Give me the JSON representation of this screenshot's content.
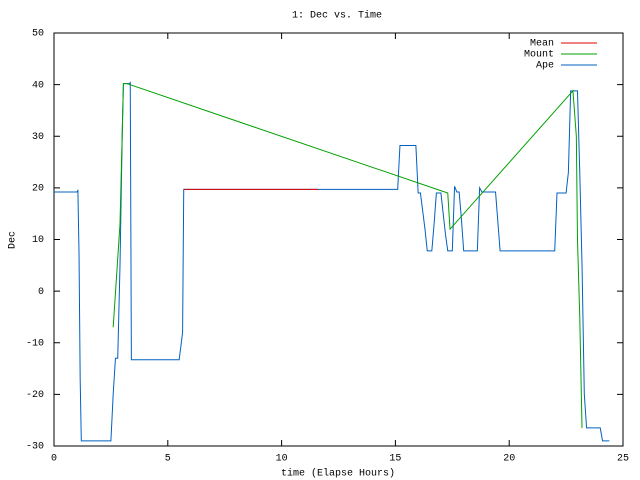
{
  "chart_data": {
    "type": "line",
    "title": "1: Dec vs. Time",
    "x_label": "time (Elapse Hours)",
    "y_label": "Dec",
    "xlim": [
      0,
      25
    ],
    "xticks": [
      0,
      5,
      10,
      15,
      20,
      25
    ],
    "ylim": [
      -30,
      50
    ],
    "yticks": [
      -30,
      -20,
      -10,
      0,
      10,
      20,
      30,
      40,
      50
    ],
    "grid": false,
    "legend": "top-right",
    "series": [
      {
        "name": "Mean",
        "color": "#e00000",
        "x": [
          5.7,
          11.6,
          15.3,
          15.8
        ],
        "values": [
          19.7,
          19.7,
          null,
          28.2
        ]
      },
      {
        "name": "Mount",
        "color": "#00a000",
        "x": [
          2.6,
          2.9,
          3.0,
          3.05,
          3.2,
          17.3,
          17.4,
          22.8,
          22.95,
          23.0,
          23.1,
          23.2
        ],
        "values": [
          -7,
          13,
          31,
          40.2,
          40.2,
          19,
          12,
          38.8,
          30,
          10,
          -5,
          -26.5
        ]
      },
      {
        "name": "Ape",
        "color": "#0060c0",
        "x": [
          0,
          1.0,
          1.05,
          1.1,
          1.15,
          1.2,
          2.5,
          2.6,
          2.7,
          2.8,
          2.9,
          3.0,
          3.05,
          3.3,
          3.35,
          3.4,
          5.5,
          5.65,
          5.7,
          15.1,
          15.2,
          15.9,
          16.0,
          16.1,
          16.3,
          16.4,
          16.6,
          16.7,
          16.8,
          17.0,
          17.2,
          17.3,
          17.5,
          17.6,
          17.7,
          17.8,
          17.9,
          18.0,
          18.6,
          18.7,
          18.8,
          19.4,
          19.6,
          22.0,
          22.1,
          22.5,
          22.6,
          22.7,
          23.0,
          23.1,
          23.2,
          23.3,
          23.4,
          24.0,
          24.1,
          24.4
        ],
        "values": [
          19.2,
          19.2,
          19.5,
          7,
          -17,
          -29,
          -29,
          -20,
          -13,
          -13,
          5,
          31,
          40.2,
          40.2,
          40.4,
          -13.3,
          -13.3,
          -8,
          19.7,
          19.7,
          28.2,
          28.2,
          19,
          19,
          12,
          7.8,
          7.8,
          13,
          19,
          19,
          11,
          7.8,
          7.8,
          20.3,
          19.2,
          19.2,
          14,
          7.8,
          7.8,
          20,
          19.2,
          19.2,
          7.8,
          7.8,
          19,
          19,
          23,
          38.8,
          38.8,
          23,
          5,
          -20,
          -26.5,
          -26.5,
          -29,
          -29
        ]
      }
    ]
  }
}
